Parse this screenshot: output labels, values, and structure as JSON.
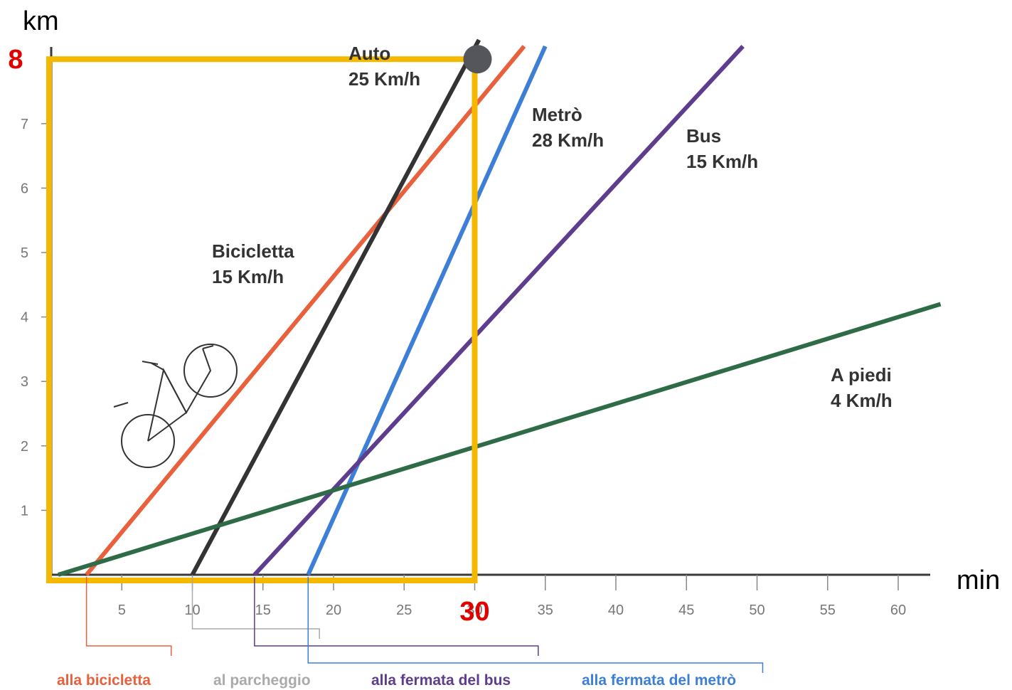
{
  "chart_data": {
    "type": "line",
    "title": "",
    "xlabel": "min",
    "ylabel": "km",
    "xlim": [
      0,
      62
    ],
    "ylim": [
      0,
      8
    ],
    "x_ticks": [
      5,
      10,
      15,
      20,
      25,
      30,
      35,
      40,
      45,
      50,
      55,
      60
    ],
    "y_ticks": [
      1,
      2,
      3,
      4,
      5,
      6,
      7
    ],
    "grid": false,
    "series": [
      {
        "key": "bicicletta",
        "name": "Bicicletta",
        "speed_label": "15 Km/h",
        "color": "#e8603c",
        "points": [
          [
            2.5,
            0
          ],
          [
            33.5,
            8.2
          ]
        ]
      },
      {
        "key": "auto",
        "name": "Auto",
        "speed_label": "25 Km/h",
        "color": "#333333",
        "points": [
          [
            10,
            0
          ],
          [
            30.3,
            8.3
          ]
        ]
      },
      {
        "key": "metro",
        "name": "Metrò",
        "speed_label": "28 Km/h",
        "color": "#3d7fd6",
        "points": [
          [
            18.2,
            0
          ],
          [
            35,
            8.2
          ]
        ]
      },
      {
        "key": "bus",
        "name": "Bus",
        "speed_label": "15 Km/h",
        "color": "#5e3d8e",
        "points": [
          [
            14.4,
            0
          ],
          [
            49,
            8.2
          ]
        ]
      },
      {
        "key": "piedi",
        "name": "A piedi",
        "speed_label": "4 Km/h",
        "color": "#2e6b47",
        "points": [
          [
            0.5,
            0
          ],
          [
            63,
            4.2
          ]
        ]
      }
    ],
    "highlight": {
      "x": 30,
      "y": 8,
      "x_label": "30",
      "y_label": "8",
      "color": "#f5b800",
      "marker_color": "#55555c"
    },
    "brackets": [
      {
        "label": "alla bicicletta",
        "start": 2.5,
        "end": 8.5,
        "color": "#e8603c"
      },
      {
        "label": "al parcheggio",
        "start": 10,
        "end": 19,
        "color": "#aaaaaa"
      },
      {
        "label": "alla fermata del bus",
        "start": 14.4,
        "end": 34.5,
        "color": "#5e3d8e"
      },
      {
        "label": "alla fermata del metrò",
        "start": 18.2,
        "end": 50.4,
        "color": "#3d7fd6"
      }
    ]
  }
}
